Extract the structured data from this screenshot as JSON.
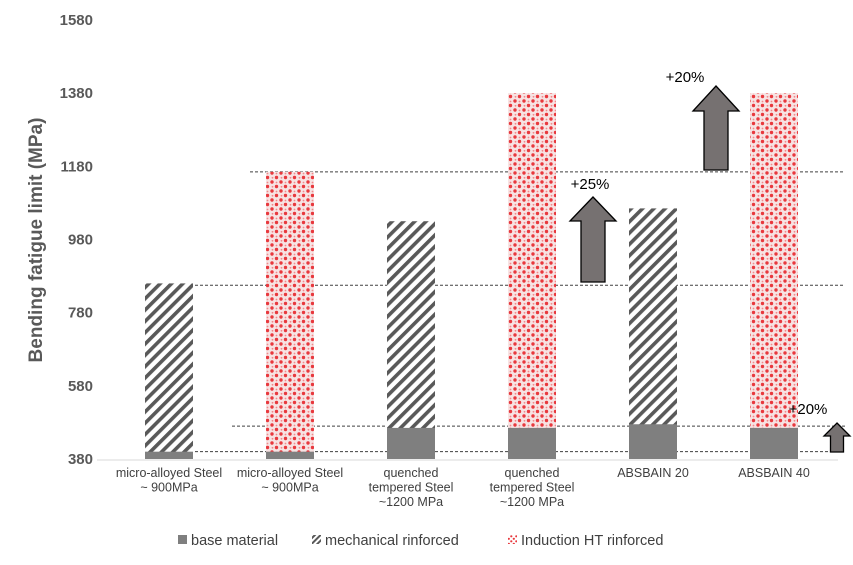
{
  "chart_data": {
    "type": "bar",
    "stacked": "overlay",
    "ylabel": "Bending fatigue limit (MPa)",
    "xlabel": "",
    "ylim": [
      380,
      1580
    ],
    "yticks": [
      "380",
      "580",
      "780",
      "980",
      "1180",
      "1380",
      "1580"
    ],
    "grid": false,
    "legend_position": "bottom",
    "categories": [
      [
        "micro-alloyed Steel",
        "~ 900MPa"
      ],
      [
        "micro-alloyed Steel",
        "~ 900MPa"
      ],
      [
        "quenched",
        "tempered Steel",
        "~1200 MPa"
      ],
      [
        "quenched",
        "tempered Steel",
        "~1200 MPa"
      ],
      [
        "ABSBAIN 20"
      ],
      [
        "ABSBAIN 40"
      ]
    ],
    "series": [
      {
        "name": "base material",
        "pattern": "solid",
        "color": "#7f7f7f",
        "values": [
          400,
          400,
          465,
          465,
          475,
          465
        ]
      },
      {
        "name": "mechanical rinforced",
        "pattern": "diagonal-hatch",
        "color": "#595959",
        "values": [
          860,
          null,
          1030,
          null,
          1065,
          null
        ]
      },
      {
        "name": "Induction HT rinforced",
        "pattern": "red-dots",
        "color": "#e8383d",
        "values": [
          null,
          1165,
          null,
          1380,
          null,
          1380
        ]
      }
    ],
    "reference_lines": [
      855,
      1165,
      470,
      400
    ],
    "annotations": [
      "+25%",
      "+20%",
      "+20%"
    ],
    "arrow_color": "#767171"
  }
}
